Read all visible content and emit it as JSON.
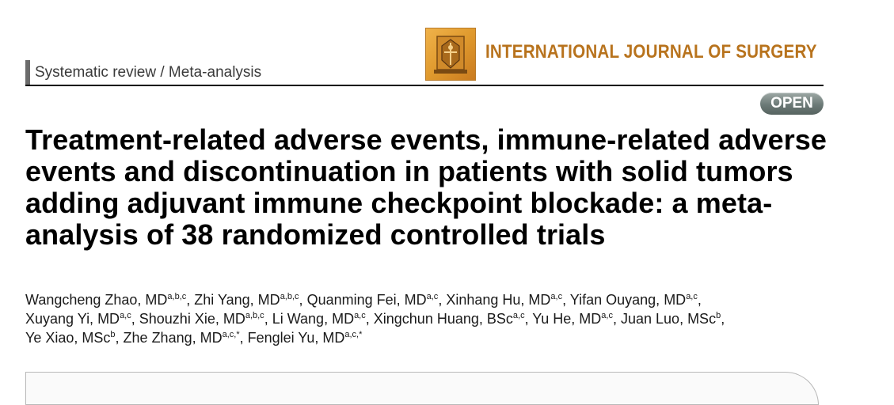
{
  "section": {
    "label": "Systematic review / Meta-analysis"
  },
  "journal": {
    "name": "INTERNATIONAL JOURNAL OF SURGERY",
    "brand_color": "#b8731d",
    "logo_icon": "journal-crest-icon"
  },
  "badge": {
    "label": "OPEN"
  },
  "article": {
    "title": "Treatment-related adverse events, immune-related adverse events and discontinuation in patients with solid tumors adding adjuvant immune checkpoint blockade: a meta-analysis of 38 randomized controlled trials"
  },
  "authors": [
    {
      "name": "Wangcheng Zhao, MD",
      "aff": "a,b,c"
    },
    {
      "name": "Zhi Yang, MD",
      "aff": "a,b,c"
    },
    {
      "name": "Quanming Fei, MD",
      "aff": "a,c"
    },
    {
      "name": "Xinhang Hu, MD",
      "aff": "a,c"
    },
    {
      "name": "Yifan Ouyang, MD",
      "aff": "a,c"
    },
    {
      "name": "Xuyang Yi, MD",
      "aff": "a,c"
    },
    {
      "name": "Shouzhi Xie, MD",
      "aff": "a,b,c"
    },
    {
      "name": "Li Wang, MD",
      "aff": "a,c"
    },
    {
      "name": "Xingchun Huang, BSc",
      "aff": "a,c"
    },
    {
      "name": "Yu He, MD",
      "aff": "a,c"
    },
    {
      "name": "Juan Luo, MSc",
      "aff": "b"
    },
    {
      "name": "Ye Xiao, MSc",
      "aff": "b"
    },
    {
      "name": "Zhe Zhang, MD",
      "aff": "a,c,*"
    },
    {
      "name": "Fenglei Yu, MD",
      "aff": "a,c,*"
    }
  ]
}
